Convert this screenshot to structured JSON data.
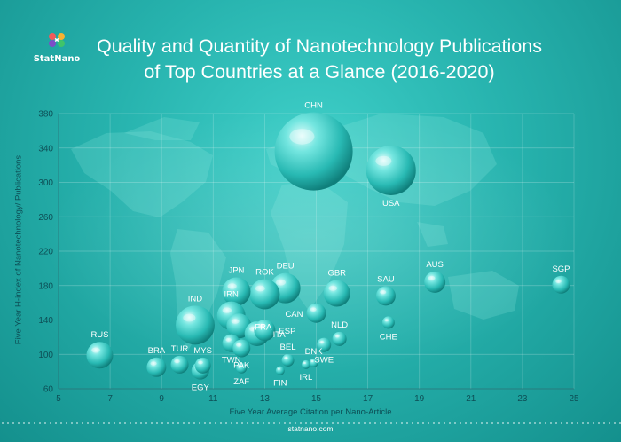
{
  "brand": {
    "name": "StatNano",
    "footer": "statnano.com",
    "accent": "#2fc2bd"
  },
  "chart_data": {
    "type": "scatter",
    "title": "Quality and Quantity of Nanotechnology Publications of Top Countries at a Glance (2016-2020)",
    "title_lines": [
      "Quality and Quantity of Nanotechnology Publications",
      "of Top Countries at a Glance (2016-2020)"
    ],
    "xlabel": "Five Year Average Citation per Nano-Article",
    "ylabel": "Five Year H-index of Nanotechnology/ Publications",
    "xlim": [
      5,
      25
    ],
    "ylim": [
      60,
      380
    ],
    "xticks": [
      5,
      7,
      9,
      11,
      13,
      15,
      17,
      19,
      21,
      23,
      25
    ],
    "yticks": [
      60,
      100,
      140,
      180,
      220,
      260,
      300,
      340,
      380
    ],
    "grid": true,
    "bubble_color": "#3ad2cc",
    "points": [
      {
        "label": "CHN",
        "x": 14.9,
        "y": 336,
        "r": 44,
        "label_pos": "top"
      },
      {
        "label": "USA",
        "x": 17.9,
        "y": 314,
        "r": 28,
        "label_pos": "bottom"
      },
      {
        "label": "SGP",
        "x": 24.5,
        "y": 181,
        "r": 10,
        "label_pos": "top"
      },
      {
        "label": "AUS",
        "x": 19.6,
        "y": 184,
        "r": 12,
        "label_pos": "top"
      },
      {
        "label": "SAU",
        "x": 17.7,
        "y": 168,
        "r": 11,
        "label_pos": "top"
      },
      {
        "label": "GBR",
        "x": 15.8,
        "y": 171,
        "r": 15,
        "label_pos": "top"
      },
      {
        "label": "DEU",
        "x": 13.8,
        "y": 177,
        "r": 17,
        "label_pos": "top"
      },
      {
        "label": "ROK",
        "x": 13.0,
        "y": 170,
        "r": 17,
        "label_pos": "top"
      },
      {
        "label": "JPN",
        "x": 11.9,
        "y": 173,
        "r": 16,
        "label_pos": "top"
      },
      {
        "label": "CHE",
        "x": 17.8,
        "y": 137,
        "r": 7,
        "label_pos": "bottom"
      },
      {
        "label": "CAN",
        "x": 15.0,
        "y": 148,
        "r": 11,
        "label_pos": "left"
      },
      {
        "label": "NLD",
        "x": 15.9,
        "y": 118,
        "r": 8,
        "label_pos": "top"
      },
      {
        "label": "IND",
        "x": 10.3,
        "y": 134,
        "r": 22,
        "label_pos": "top"
      },
      {
        "label": "IRN",
        "x": 11.7,
        "y": 145,
        "r": 16,
        "label_pos": "top"
      },
      {
        "label": "FRA",
        "x": 12.0,
        "y": 133,
        "r": 14,
        "label_pos": "right"
      },
      {
        "label": "ESP",
        "x": 13.0,
        "y": 128,
        "r": 12,
        "label_pos": "right"
      },
      {
        "label": "ITA",
        "x": 12.7,
        "y": 124,
        "r": 14,
        "label_pos": "right"
      },
      {
        "label": "RUS",
        "x": 6.6,
        "y": 99,
        "r": 15,
        "label_pos": "top"
      },
      {
        "label": "BRA",
        "x": 8.8,
        "y": 85,
        "r": 11,
        "label_pos": "top"
      },
      {
        "label": "TUR",
        "x": 9.7,
        "y": 88,
        "r": 10,
        "label_pos": "top"
      },
      {
        "label": "MYS",
        "x": 10.6,
        "y": 87,
        "r": 9,
        "label_pos": "top"
      },
      {
        "label": "EGY",
        "x": 10.5,
        "y": 81,
        "r": 10,
        "label_pos": "bottom"
      },
      {
        "label": "TWN",
        "x": 11.7,
        "y": 113,
        "r": 10,
        "label_pos": "bottom"
      },
      {
        "label": "PAK",
        "x": 12.1,
        "y": 107,
        "r": 10,
        "label_pos": "bottom"
      },
      {
        "label": "ZAF",
        "x": 12.1,
        "y": 84,
        "r": 6,
        "label_pos": "bottom"
      },
      {
        "label": "BEL",
        "x": 13.9,
        "y": 93,
        "r": 7,
        "label_pos": "top"
      },
      {
        "label": "FIN",
        "x": 13.6,
        "y": 81,
        "r": 5,
        "label_pos": "bottom"
      },
      {
        "label": "DNK",
        "x": 14.9,
        "y": 90,
        "r": 5,
        "label_pos": "top"
      },
      {
        "label": "IRL",
        "x": 14.6,
        "y": 88,
        "r": 5,
        "label_pos": "bottom"
      },
      {
        "label": "SWE",
        "x": 15.3,
        "y": 111,
        "r": 8,
        "label_pos": "bottom"
      }
    ]
  }
}
